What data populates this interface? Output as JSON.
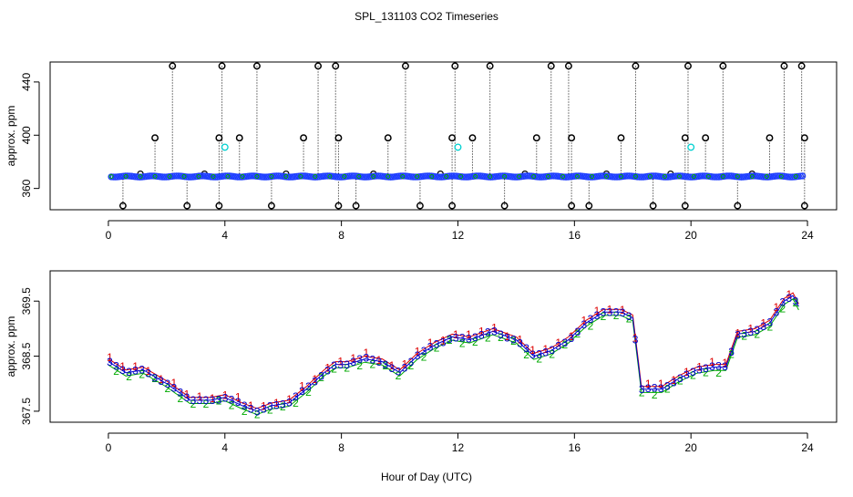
{
  "title": "SPL_131103  CO2 Timeseries",
  "xlabel": "Hour of Day (UTC)",
  "colors": {
    "series1": "#dd0000",
    "series2": "#00aa00",
    "series3": "#0000cc",
    "outlier": "#000000",
    "cyan": "#00d0d0",
    "bluefill": "#1f3fff"
  },
  "chart_data": [
    {
      "type": "scatter",
      "panel": "top",
      "ylabel": "approx. ppm",
      "xlim": [
        -2,
        25
      ],
      "ylim": [
        344,
        455
      ],
      "xticks": [
        0,
        4,
        8,
        12,
        16,
        20,
        24
      ],
      "yticks": [
        360,
        400,
        440
      ],
      "baseline": 369,
      "baseline_range": [
        0.1,
        23.9
      ],
      "outliers_high": [
        2.2,
        3.9,
        5.1,
        7.2,
        7.8,
        10.2,
        11.9,
        13.1,
        15.2,
        15.8,
        18.1,
        19.9,
        21.1,
        23.2,
        23.8
      ],
      "outliers_mid": [
        1.6,
        3.8,
        4.5,
        6.7,
        7.9,
        9.6,
        11.8,
        12.5,
        14.7,
        15.9,
        17.6,
        19.8,
        20.5,
        22.7,
        23.9
      ],
      "outliers_low": [
        0.5,
        2.7,
        3.8,
        5.6,
        7.9,
        8.5,
        10.7,
        11.8,
        13.6,
        15.9,
        16.5,
        18.7,
        19.8,
        21.6,
        23.9
      ],
      "outliers_near": [
        1.1,
        3.3,
        6.1,
        9.1,
        11.4,
        14.3,
        17.1,
        19.3,
        22.1
      ],
      "cyan_points": [
        {
          "x": 4.0,
          "y": 391
        },
        {
          "x": 12.0,
          "y": 391
        },
        {
          "x": 20.0,
          "y": 391
        }
      ]
    },
    {
      "type": "scatter",
      "panel": "bottom",
      "ylabel": "approx. ppm",
      "xlim": [
        -2,
        25
      ],
      "ylim": [
        367.3,
        370.05
      ],
      "xticks": [
        0,
        4,
        8,
        12,
        16,
        20,
        24
      ],
      "yticks": [
        367.5,
        368.5,
        369.5
      ],
      "series_labels": [
        "1",
        "2",
        "3"
      ],
      "trend": [
        [
          0.0,
          368.4
        ],
        [
          0.6,
          368.2
        ],
        [
          1.2,
          368.25
        ],
        [
          2.0,
          368.0
        ],
        [
          2.8,
          367.7
        ],
        [
          3.5,
          367.7
        ],
        [
          4.0,
          367.75
        ],
        [
          4.6,
          367.6
        ],
        [
          5.1,
          367.5
        ],
        [
          5.6,
          367.6
        ],
        [
          6.2,
          367.65
        ],
        [
          6.8,
          367.9
        ],
        [
          7.4,
          368.2
        ],
        [
          7.8,
          368.35
        ],
        [
          8.2,
          368.35
        ],
        [
          8.8,
          368.45
        ],
        [
          9.4,
          368.4
        ],
        [
          10.0,
          368.2
        ],
        [
          10.6,
          368.5
        ],
        [
          11.2,
          368.7
        ],
        [
          11.8,
          368.85
        ],
        [
          12.4,
          368.8
        ],
        [
          13.2,
          368.95
        ],
        [
          14.0,
          368.8
        ],
        [
          14.6,
          368.5
        ],
        [
          15.2,
          368.6
        ],
        [
          15.8,
          368.8
        ],
        [
          16.4,
          369.1
        ],
        [
          17.0,
          369.3
        ],
        [
          17.6,
          369.3
        ],
        [
          18.0,
          369.2
        ],
        [
          18.3,
          367.9
        ],
        [
          19.0,
          367.9
        ],
        [
          19.6,
          368.1
        ],
        [
          20.2,
          368.25
        ],
        [
          20.8,
          368.3
        ],
        [
          21.2,
          368.3
        ],
        [
          21.6,
          368.9
        ],
        [
          22.2,
          368.95
        ],
        [
          22.7,
          369.1
        ],
        [
          23.2,
          369.5
        ],
        [
          23.5,
          369.6
        ],
        [
          23.8,
          369.3
        ]
      ]
    }
  ]
}
